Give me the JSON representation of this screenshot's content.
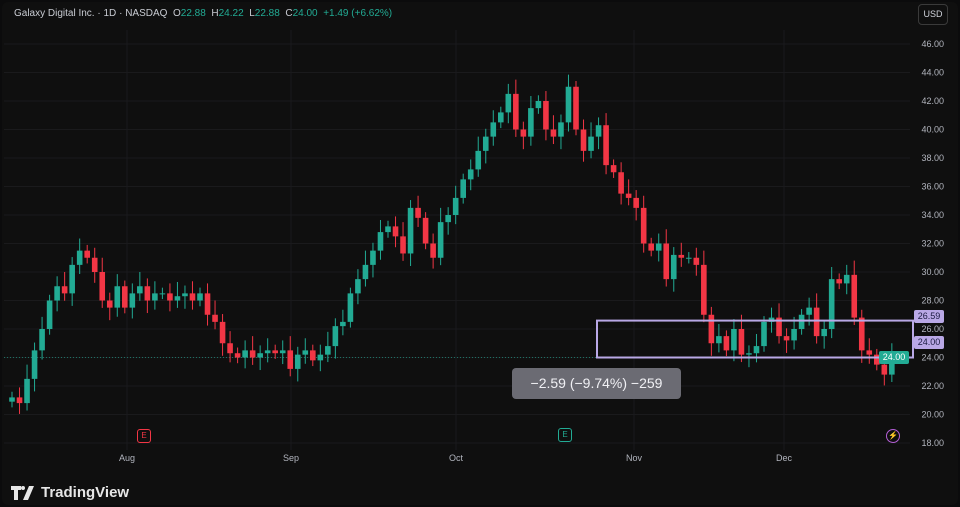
{
  "header": {
    "symbol": "Galaxy Digital Inc.",
    "interval": "1D",
    "exchange": "NASDAQ",
    "sep": "·",
    "open_label": "O",
    "open": "22.88",
    "high_label": "H",
    "high": "24.22",
    "low_label": "L",
    "low": "22.88",
    "close_label": "C",
    "close": "24.00",
    "change": "+1.49 (+6.62%)"
  },
  "currency_button": "USD",
  "price_axis": [
    "46.00",
    "44.00",
    "42.00",
    "40.00",
    "38.00",
    "36.00",
    "34.00",
    "32.00",
    "30.00",
    "28.00",
    "26.00",
    "24.00",
    "22.00",
    "20.00",
    "18.00"
  ],
  "time_axis": [
    "Aug",
    "Sep",
    "Oct",
    "Nov",
    "Dec"
  ],
  "measure": {
    "label": "−2.59 (−9.74%) −259",
    "top_price": "26.59",
    "bottom_price": "24.00",
    "current_price": "24.00"
  },
  "events": [
    {
      "glyph": "E",
      "type": "earnings",
      "color": "#f23645"
    },
    {
      "glyph": "E",
      "type": "earnings",
      "color": "#22ab94"
    },
    {
      "glyph": "⚡",
      "type": "dividend-split",
      "color": "#9c27b0"
    }
  ],
  "colors": {
    "up": "#22ab94",
    "down": "#f23645",
    "measure": "#b9a8e6",
    "background": "#0f0f0f"
  },
  "brand": "TradingView",
  "chart_data": {
    "type": "candlestick",
    "y_range": [
      18,
      46
    ],
    "closes": [
      21.2,
      20.8,
      22.5,
      24.5,
      26,
      28,
      29,
      28.5,
      30.5,
      31.5,
      31,
      30,
      28,
      27.5,
      29,
      27.5,
      28.5,
      29,
      28,
      28.5,
      28.5,
      28,
      28.3,
      28.5,
      28,
      28.5,
      27,
      26.5,
      25,
      24.3,
      24,
      24.5,
      24,
      24.3,
      24.5,
      24.3,
      24.5,
      23.2,
      24.2,
      24.5,
      23.8,
      24.2,
      24.8,
      26.2,
      26.5,
      28.5,
      29.5,
      30.5,
      31.5,
      32.8,
      33.2,
      32.5,
      31.3,
      34.5,
      33.8,
      32,
      31,
      33.5,
      34,
      35.2,
      36.5,
      37.2,
      38.5,
      39.5,
      40.5,
      41.2,
      42.5,
      40,
      39.5,
      41.5,
      42,
      40,
      39.5,
      40.5,
      43,
      40,
      38.5,
      39.5,
      40.3,
      37.5,
      37,
      35.5,
      35.2,
      34.5,
      32,
      31.5,
      32,
      29.5,
      31.2,
      31,
      31,
      30.5,
      27,
      25,
      25.5,
      24.5,
      26,
      24.2,
      24.3,
      24.8,
      26.5,
      26.8,
      25.5,
      25.2,
      26,
      27,
      27.5,
      25.5,
      26,
      29.5,
      29.2,
      29.8,
      26.8,
      24.5,
      24.2,
      23.5,
      22.8,
      24
    ]
  }
}
